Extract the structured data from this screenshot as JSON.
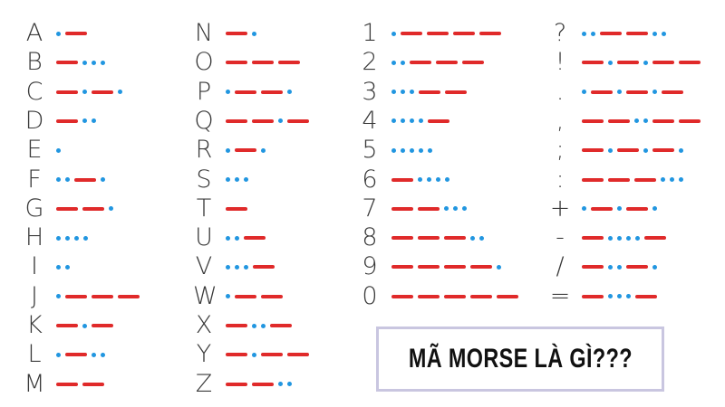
{
  "title": "MÃ MORSE LÀ GÌ???",
  "colors": {
    "dot": "#2196e0",
    "dash": "#e02a2a",
    "text": "#3a3a3a",
    "border": "#c9c6e0"
  },
  "columns": [
    {
      "items": [
        {
          "char": "A",
          "code": ".-"
        },
        {
          "char": "B",
          "code": "-..."
        },
        {
          "char": "C",
          "code": "-.-."
        },
        {
          "char": "D",
          "code": "-.."
        },
        {
          "char": "E",
          "code": "."
        },
        {
          "char": "F",
          "code": "..-."
        },
        {
          "char": "G",
          "code": "--."
        },
        {
          "char": "H",
          "code": "...."
        },
        {
          "char": "I",
          "code": ".."
        },
        {
          "char": "J",
          "code": ".---"
        },
        {
          "char": "K",
          "code": "-.-"
        },
        {
          "char": "L",
          "code": ".-.."
        },
        {
          "char": "M",
          "code": "--"
        }
      ]
    },
    {
      "items": [
        {
          "char": "N",
          "code": "-."
        },
        {
          "char": "O",
          "code": "---"
        },
        {
          "char": "P",
          "code": ".--."
        },
        {
          "char": "Q",
          "code": "--.-"
        },
        {
          "char": "R",
          "code": ".-."
        },
        {
          "char": "S",
          "code": "..."
        },
        {
          "char": "T",
          "code": "-"
        },
        {
          "char": "U",
          "code": "..-"
        },
        {
          "char": "V",
          "code": "...-"
        },
        {
          "char": "W",
          "code": ".--"
        },
        {
          "char": "X",
          "code": "-..-"
        },
        {
          "char": "Y",
          "code": "-.--"
        },
        {
          "char": "Z",
          "code": "--.."
        }
      ]
    },
    {
      "items": [
        {
          "char": "1",
          "code": ".----"
        },
        {
          "char": "2",
          "code": "..---"
        },
        {
          "char": "3",
          "code": "...--"
        },
        {
          "char": "4",
          "code": "....-"
        },
        {
          "char": "5",
          "code": "....."
        },
        {
          "char": "6",
          "code": "-...."
        },
        {
          "char": "7",
          "code": "--..."
        },
        {
          "char": "8",
          "code": "---.."
        },
        {
          "char": "9",
          "code": "----."
        },
        {
          "char": "0",
          "code": "-----"
        }
      ]
    },
    {
      "items": [
        {
          "char": "?",
          "code": "..--.."
        },
        {
          "char": "!",
          "code": "-.-.--"
        },
        {
          "char": ".",
          "code": ".-.-.-"
        },
        {
          "char": ",",
          "code": "--..--"
        },
        {
          "char": ";",
          "code": "-.-.-."
        },
        {
          "char": ":",
          "code": "---..."
        },
        {
          "char": "+",
          "code": ".-.-."
        },
        {
          "char": "-",
          "code": "-....-"
        },
        {
          "char": "/",
          "code": "-..-."
        },
        {
          "char": "=",
          "code": "-...-"
        }
      ]
    }
  ]
}
